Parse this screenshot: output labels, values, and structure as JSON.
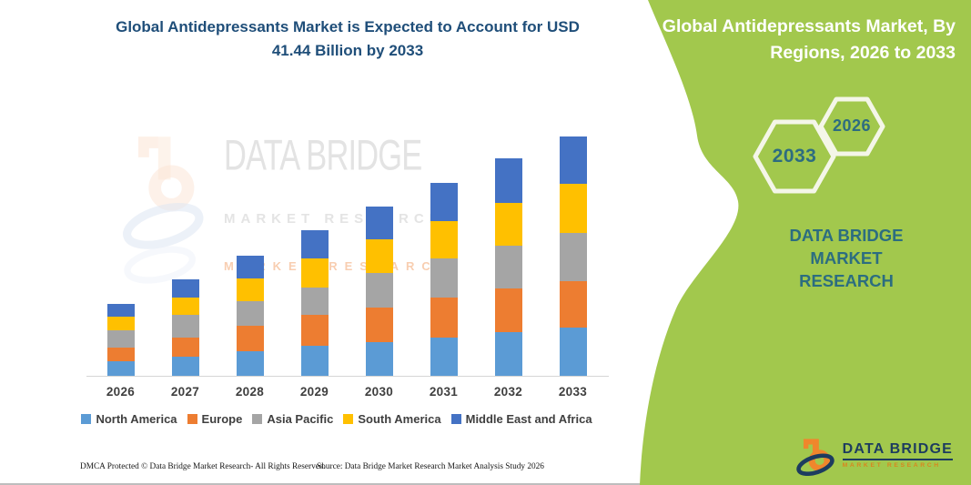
{
  "header": {
    "title_line1": "Global Antidepressants Market is Expected to Account for USD",
    "title_line2": "41.44 Billion by 2033"
  },
  "side_panel": {
    "title_line1": "Global Antidepressants Market, By",
    "title_line2": "Regions, 2026 to 2033",
    "hexagon_large_label": "2033",
    "hexagon_small_label": "2026",
    "brand_line1": "DATA BRIDGE MARKET",
    "brand_line2": "RESEARCH",
    "colors": {
      "background_green": "#a2c84d",
      "teal_text": "#2c6d80",
      "hexagon_stroke": "#f4f6e8"
    }
  },
  "logo": {
    "name": "DATA BRIDGE",
    "subtitle": "MARKET RESEARCH",
    "navy": "#1d3c5f",
    "orange": "#f0862c"
  },
  "watermark": {
    "line1": "DATA BRIDGE",
    "line2": "MARKET RESEARCH",
    "line3": "MARKET RESEARCH"
  },
  "chart_data": {
    "type": "bar",
    "stacked": true,
    "title": "Global Antidepressants Market is Expected to Account for USD 41.44 Billion by 2033",
    "unit": "USD billion",
    "categories": [
      "2026",
      "2027",
      "2028",
      "2029",
      "2030",
      "2031",
      "2032",
      "2033"
    ],
    "series": [
      {
        "name": "North America",
        "color": "#5B9BD5",
        "values": [
          2.5,
          3.3,
          4.3,
          5.2,
          5.9,
          6.7,
          7.6,
          8.4
        ]
      },
      {
        "name": "Europe",
        "color": "#ED7D31",
        "values": [
          2.4,
          3.3,
          4.4,
          5.3,
          5.9,
          6.8,
          7.5,
          8.0
        ]
      },
      {
        "name": "Asia Pacific",
        "color": "#A5A5A5",
        "values": [
          3.0,
          3.9,
          4.2,
          4.8,
          6.0,
          6.8,
          7.5,
          8.4
        ]
      },
      {
        "name": "South America",
        "color": "#FFC000",
        "values": [
          2.3,
          3.0,
          4.0,
          5.0,
          5.8,
          6.5,
          7.3,
          8.4
        ]
      },
      {
        "name": "Middle East and Africa",
        "color": "#4472C4",
        "values": [
          2.2,
          3.2,
          3.9,
          4.9,
          5.8,
          6.6,
          7.7,
          8.24
        ]
      }
    ],
    "estimated_totals": [
      12.4,
      16.7,
      20.8,
      25.2,
      29.4,
      33.4,
      37.6,
      41.44
    ],
    "ylim": [
      0,
      45
    ],
    "grid": false,
    "y_axis_visible": false,
    "legend_position": "bottom"
  },
  "footer": {
    "dmca": "DMCA Protected © Data Bridge Market Research-  All Rights Reserved.",
    "source": "Source: Data Bridge Market Research  Market Analysis Study 2026"
  }
}
